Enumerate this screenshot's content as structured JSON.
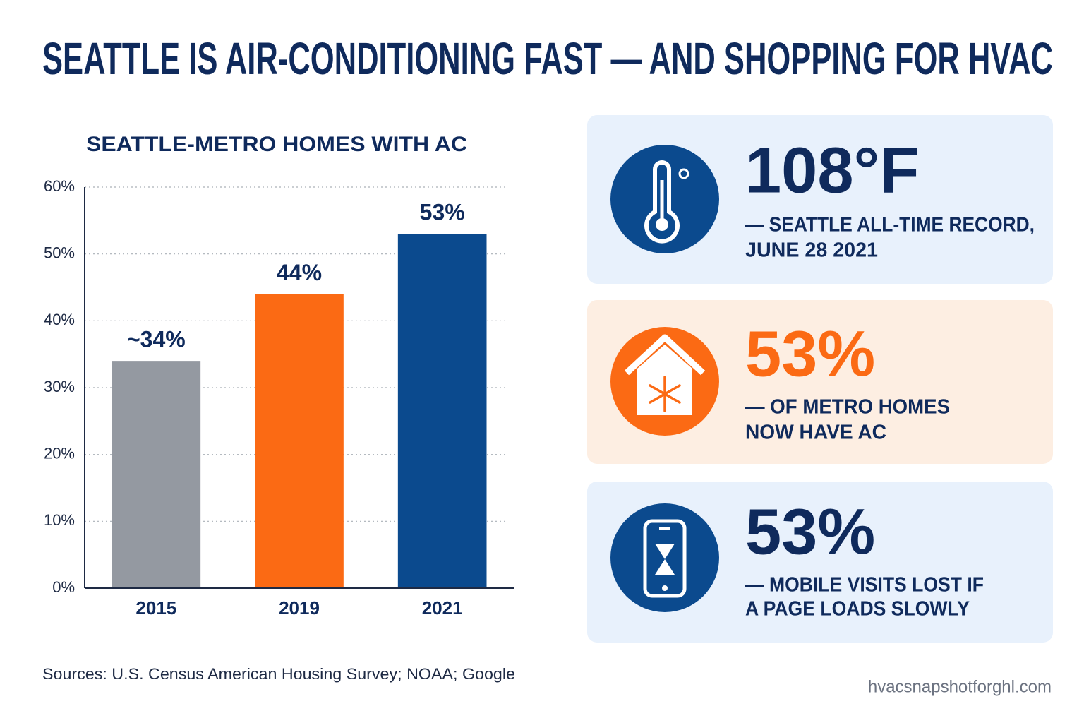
{
  "title": "SEATTLE IS AIR-CONDITIONING FAST — AND SHOPPING FOR HVAC",
  "chart_data": {
    "type": "bar",
    "title": "SEATTLE-METRO HOMES WITH AC",
    "categories": [
      "2015",
      "2019",
      "2021"
    ],
    "values": [
      34,
      44,
      53
    ],
    "value_labels": [
      "~34%",
      "44%",
      "53%"
    ],
    "colors": [
      "#9499a1",
      "#fb6a14",
      "#0b4a8e"
    ],
    "ylim": [
      0,
      60
    ],
    "yticks": [
      {
        "value": 0,
        "label": "0%"
      },
      {
        "value": 10,
        "label": "10%"
      },
      {
        "value": 20,
        "label": "20%"
      },
      {
        "value": 30,
        "label": "30%"
      },
      {
        "value": 40,
        "label": "40%"
      },
      {
        "value": 50,
        "label": "50%"
      },
      {
        "value": 60,
        "label": "60%"
      }
    ],
    "grid": true
  },
  "cards": [
    {
      "stat": "108°F",
      "lines": [
        "— SEATTLE ALL-TIME RECORD,",
        "JUNE 28 2021"
      ]
    },
    {
      "stat": "53%",
      "lines": [
        "— OF METRO HOMES",
        "NOW HAVE AC"
      ]
    },
    {
      "stat": "53%",
      "lines": [
        "— MOBILE VISITS LOST IF",
        "A PAGE LOADS SLOWLY"
      ]
    }
  ],
  "sources": "Sources: U.S. Census American Housing Survey; NOAA; Google",
  "footer": "hvacsnapshotforghl.com"
}
